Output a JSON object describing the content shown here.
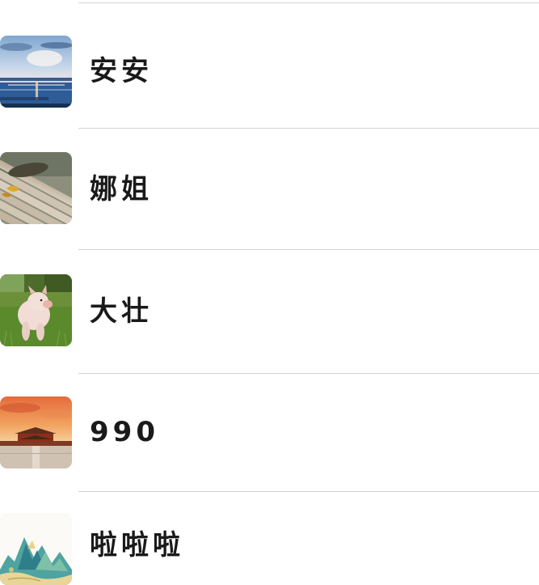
{
  "contacts": [
    {
      "name": "安安",
      "avatar_icon": "sea-sunset-landscape-avatar"
    },
    {
      "name": "娜姐",
      "avatar_icon": "wooden-bench-leaf-avatar"
    },
    {
      "name": "大壮",
      "avatar_icon": "piglet-on-grass-avatar"
    },
    {
      "name": "990",
      "avatar_icon": "palace-sunset-avatar"
    },
    {
      "name": "啦啦啦",
      "avatar_icon": "mountain-landscape-painting-avatar"
    }
  ]
}
